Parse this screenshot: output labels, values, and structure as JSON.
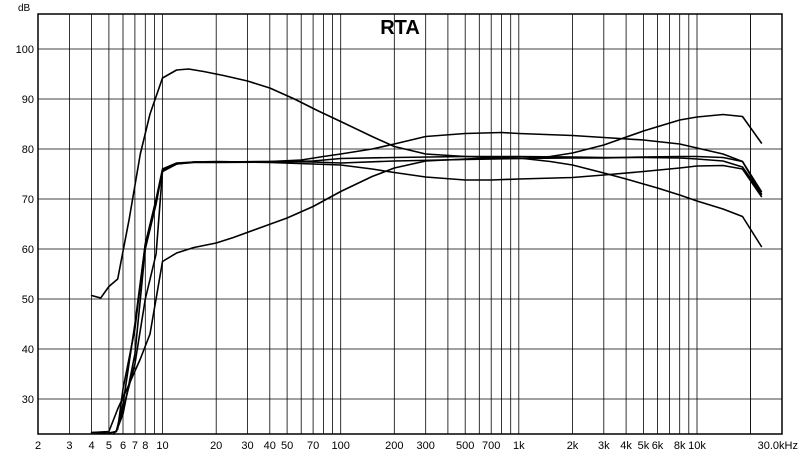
{
  "chart_data": {
    "type": "line",
    "title": "RTA",
    "ylabel": "dB",
    "xlabel": "",
    "x_scale": "log",
    "xlim": [
      2,
      30000
    ],
    "ylim": [
      23,
      107
    ],
    "grid": true,
    "x_tick_labels": [
      {
        "value": 2,
        "label": "2"
      },
      {
        "value": 3,
        "label": "3"
      },
      {
        "value": 4,
        "label": "4"
      },
      {
        "value": 5,
        "label": "5"
      },
      {
        "value": 6,
        "label": "6"
      },
      {
        "value": 7,
        "label": "7"
      },
      {
        "value": 8,
        "label": "8"
      },
      {
        "value": 10,
        "label": "10"
      },
      {
        "value": 20,
        "label": "20"
      },
      {
        "value": 30,
        "label": "30"
      },
      {
        "value": 40,
        "label": "40"
      },
      {
        "value": 50,
        "label": "50"
      },
      {
        "value": 70,
        "label": "70"
      },
      {
        "value": 100,
        "label": "100"
      },
      {
        "value": 200,
        "label": "200"
      },
      {
        "value": 300,
        "label": "300"
      },
      {
        "value": 500,
        "label": "500"
      },
      {
        "value": 700,
        "label": "700"
      },
      {
        "value": 1000,
        "label": "1k"
      },
      {
        "value": 2000,
        "label": "2k"
      },
      {
        "value": 3000,
        "label": "3k"
      },
      {
        "value": 4000,
        "label": "4k"
      },
      {
        "value": 5000,
        "label": "5k"
      },
      {
        "value": 6000,
        "label": "6k"
      },
      {
        "value": 8000,
        "label": "8k"
      },
      {
        "value": 10000,
        "label": "10k"
      },
      {
        "value": 30000,
        "label": "30.0kHz"
      }
    ],
    "y_tick_labels": [
      30,
      40,
      50,
      60,
      70,
      80,
      90,
      100
    ],
    "series": [
      {
        "points": [
          [
            4,
            50.7
          ],
          [
            4.5,
            50.2
          ],
          [
            5,
            52.5
          ],
          [
            5.6,
            54
          ],
          [
            6.5,
            66
          ],
          [
            7.5,
            79
          ],
          [
            8.5,
            87
          ],
          [
            10,
            94.2
          ],
          [
            12,
            95.8
          ],
          [
            14,
            96
          ],
          [
            17,
            95.5
          ],
          [
            22,
            94.7
          ],
          [
            30,
            93.6
          ],
          [
            40,
            92.2
          ],
          [
            55,
            90
          ],
          [
            75,
            87.6
          ],
          [
            100,
            85.5
          ],
          [
            150,
            82.5
          ],
          [
            200,
            80.5
          ],
          [
            300,
            79
          ],
          [
            500,
            78.5
          ],
          [
            700,
            78.3
          ],
          [
            1000,
            78.2
          ],
          [
            1500,
            77.5
          ],
          [
            2000,
            76.8
          ],
          [
            3000,
            75.2
          ],
          [
            4000,
            74
          ],
          [
            6000,
            72.2
          ],
          [
            8000,
            70.8
          ],
          [
            10000,
            69.6
          ],
          [
            14000,
            68
          ],
          [
            18000,
            66.5
          ],
          [
            23000,
            60.5
          ]
        ]
      },
      {
        "points": [
          [
            4,
            23.3
          ],
          [
            5,
            23.2
          ],
          [
            5.5,
            23.5
          ],
          [
            6,
            27
          ],
          [
            7,
            39
          ],
          [
            8,
            60
          ],
          [
            9.2,
            69
          ],
          [
            10,
            75.8
          ],
          [
            12,
            77
          ],
          [
            15,
            77.4
          ],
          [
            20,
            77.4
          ],
          [
            40,
            77.5
          ],
          [
            70,
            77.4
          ],
          [
            100,
            77.2
          ],
          [
            200,
            77.6
          ],
          [
            500,
            77.9
          ],
          [
            1000,
            78.1
          ],
          [
            2000,
            78.2
          ],
          [
            3000,
            78.2
          ],
          [
            5000,
            78.4
          ],
          [
            8000,
            78.5
          ],
          [
            10000,
            78.5
          ],
          [
            14000,
            78.3
          ],
          [
            18000,
            77.5
          ],
          [
            23000,
            71
          ]
        ]
      },
      {
        "points": [
          [
            5,
            23.2
          ],
          [
            5.5,
            23.5
          ],
          [
            6,
            29
          ],
          [
            7,
            45
          ],
          [
            8,
            61
          ],
          [
            9.2,
            69.5
          ],
          [
            10,
            75.5
          ],
          [
            12,
            77
          ],
          [
            15,
            77.3
          ],
          [
            20,
            77.3
          ],
          [
            40,
            77.4
          ],
          [
            70,
            77.6
          ],
          [
            100,
            78.1
          ],
          [
            200,
            78.3
          ],
          [
            500,
            78.5
          ],
          [
            1000,
            78.5
          ],
          [
            2000,
            78.4
          ],
          [
            3000,
            78.3
          ],
          [
            5000,
            78.3
          ],
          [
            8000,
            78.2
          ],
          [
            10000,
            78
          ],
          [
            14000,
            77.6
          ],
          [
            18000,
            76.4
          ],
          [
            23000,
            71
          ]
        ]
      },
      {
        "points": [
          [
            5.3,
            23
          ],
          [
            5.6,
            24
          ],
          [
            6,
            32
          ],
          [
            7,
            44
          ],
          [
            8,
            61
          ],
          [
            9.2,
            70
          ],
          [
            10,
            76
          ],
          [
            12,
            77.2
          ],
          [
            15,
            77.4
          ],
          [
            20,
            77.4
          ],
          [
            40,
            77.5
          ],
          [
            60,
            77.8
          ],
          [
            80,
            78.5
          ],
          [
            100,
            79
          ],
          [
            150,
            80
          ],
          [
            200,
            81
          ],
          [
            300,
            82.5
          ],
          [
            500,
            83.1
          ],
          [
            800,
            83.3
          ],
          [
            1000,
            83.1
          ],
          [
            2000,
            82.7
          ],
          [
            3000,
            82.3
          ],
          [
            5000,
            81.8
          ],
          [
            8000,
            81
          ],
          [
            10000,
            80.2
          ],
          [
            14000,
            79
          ],
          [
            18000,
            77.5
          ],
          [
            23000,
            71.5
          ]
        ]
      },
      {
        "points": [
          [
            5.5,
            23.5
          ],
          [
            6,
            28
          ],
          [
            7,
            37
          ],
          [
            8,
            50
          ],
          [
            9.2,
            59
          ],
          [
            10,
            75.6
          ],
          [
            12,
            77
          ],
          [
            15,
            77.4
          ],
          [
            20,
            77.5
          ],
          [
            40,
            77.3
          ],
          [
            70,
            77
          ],
          [
            100,
            76.8
          ],
          [
            150,
            76
          ],
          [
            200,
            75.3
          ],
          [
            300,
            74.4
          ],
          [
            500,
            73.8
          ],
          [
            700,
            73.8
          ],
          [
            1000,
            74
          ],
          [
            2000,
            74.3
          ],
          [
            3000,
            74.8
          ],
          [
            5000,
            75.5
          ],
          [
            8000,
            76.2
          ],
          [
            10000,
            76.6
          ],
          [
            14000,
            76.7
          ],
          [
            18000,
            76
          ],
          [
            23000,
            70.5
          ]
        ]
      },
      {
        "points": [
          [
            4,
            23.3
          ],
          [
            5,
            23.5
          ],
          [
            5.6,
            28
          ],
          [
            6.5,
            33
          ],
          [
            7.5,
            38
          ],
          [
            8.5,
            43
          ],
          [
            10,
            57.5
          ],
          [
            12,
            59.2
          ],
          [
            15,
            60.3
          ],
          [
            20,
            61.2
          ],
          [
            25,
            62.3
          ],
          [
            35,
            64.2
          ],
          [
            50,
            66.2
          ],
          [
            70,
            68.5
          ],
          [
            100,
            71.5
          ],
          [
            150,
            74.5
          ],
          [
            200,
            76.2
          ],
          [
            300,
            77.6
          ],
          [
            500,
            78
          ],
          [
            700,
            78.2
          ],
          [
            1000,
            78.1
          ],
          [
            1500,
            78.5
          ],
          [
            2000,
            79.2
          ],
          [
            3000,
            80.8
          ],
          [
            5000,
            83.6
          ],
          [
            8000,
            85.8
          ],
          [
            10000,
            86.4
          ],
          [
            14000,
            86.9
          ],
          [
            18000,
            86.5
          ],
          [
            23000,
            81.2
          ]
        ]
      }
    ]
  }
}
